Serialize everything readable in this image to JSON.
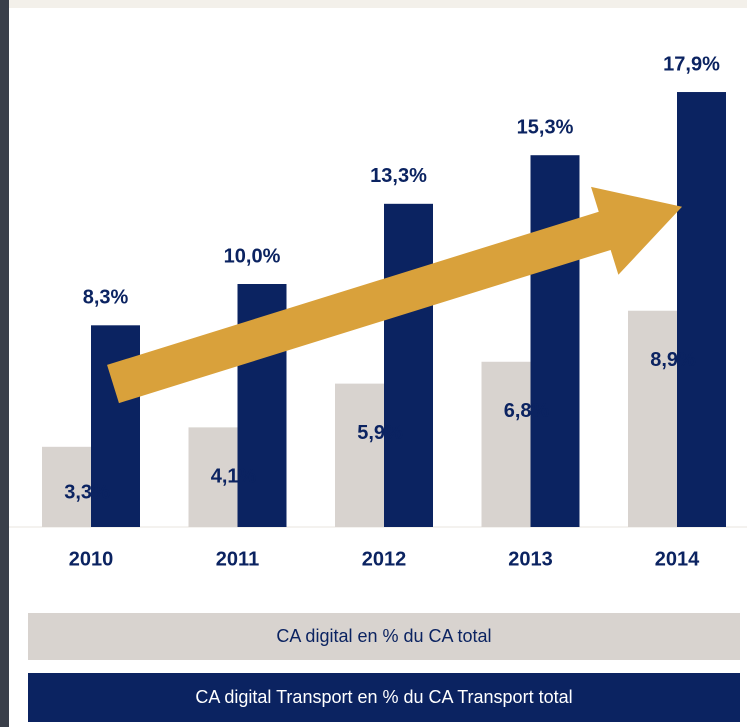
{
  "chart_data": {
    "type": "bar",
    "categories": [
      "2010",
      "2011",
      "2012",
      "2013",
      "2014"
    ],
    "series": [
      {
        "name": "CA digital en % du CA total",
        "color": "#d8d3cf",
        "values": [
          3.3,
          4.1,
          5.9,
          6.8,
          8.9
        ],
        "value_labels": [
          "3,3%",
          "4,1%",
          "5,9%",
          "6,8%",
          "8,9%"
        ]
      },
      {
        "name": "CA digital Transport en % du CA Transport total",
        "color": "#0b2361",
        "values": [
          8.3,
          10.0,
          13.3,
          15.3,
          17.9
        ],
        "value_labels": [
          "8,3%",
          "10,0%",
          "13,3%",
          "15,3%",
          "17,9%"
        ]
      }
    ]
  }
}
